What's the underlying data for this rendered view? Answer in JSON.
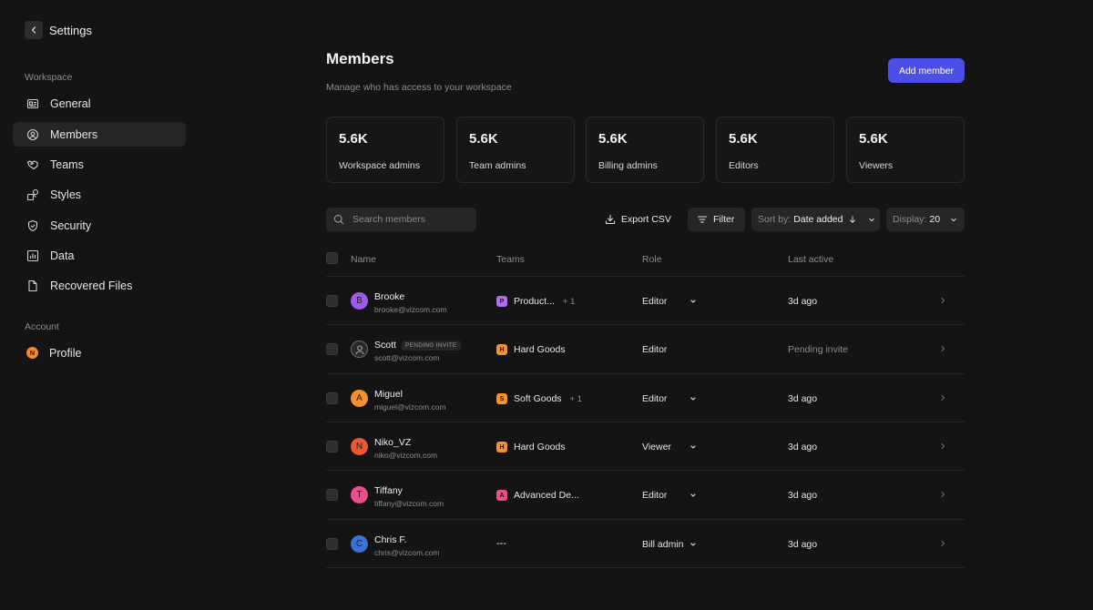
{
  "sidebar": {
    "title": "Settings",
    "workspace_label": "Workspace",
    "items": [
      {
        "label": "General"
      },
      {
        "label": "Members"
      },
      {
        "label": "Teams"
      },
      {
        "label": "Styles"
      },
      {
        "label": "Security"
      },
      {
        "label": "Data"
      },
      {
        "label": "Recovered Files"
      }
    ],
    "account_label": "Account",
    "profile": {
      "label": "Profile",
      "initial": "N",
      "color": "#f08a2a"
    }
  },
  "header": {
    "title": "Members",
    "subtitle": "Manage who has access to your workspace",
    "add_button": "Add member"
  },
  "stats": [
    {
      "value": "5.6K",
      "label": "Workspace admins"
    },
    {
      "value": "5.6K",
      "label": "Team admins"
    },
    {
      "value": "5.6K",
      "label": "Billing admins"
    },
    {
      "value": "5.6K",
      "label": "Editors"
    },
    {
      "value": "5.6K",
      "label": "Viewers"
    }
  ],
  "toolbar": {
    "search_placeholder": "Search members",
    "export_label": "Export CSV",
    "filter_label": "Filter",
    "sort_prefix": "Sort by:",
    "sort_value": "Date added",
    "display_prefix": "Display:",
    "display_value": "20"
  },
  "table": {
    "headers": {
      "name": "Name",
      "teams": "Teams",
      "role": "Role",
      "last_active": "Last active"
    },
    "rows": [
      {
        "name": "Brooke",
        "email": "brooke@vizcom.com",
        "initial": "B",
        "avatar_color": "#a259f0",
        "team": "Product...",
        "team_initial": "P",
        "team_color": "#b06cf2",
        "team_extra": "+ 1",
        "role": "Editor",
        "role_dropdown": true,
        "last_active": "3d ago"
      },
      {
        "name": "Scott",
        "badge": "PENDING INVITE",
        "email": "scott@vizcom.com",
        "initial": "",
        "avatar_color": "#2a2a2a",
        "team": "Hard Goods",
        "team_initial": "H",
        "team_color": "#f5902f",
        "team_extra": "",
        "role": "Editor",
        "role_dropdown": false,
        "last_active": "Pending invite"
      },
      {
        "name": "Miguel",
        "email": "miguel@vizcom.com",
        "initial": "A",
        "avatar_color": "#f5902f",
        "team": "Soft Goods",
        "team_initial": "S",
        "team_color": "#f5902f",
        "team_extra": "+ 1",
        "role": "Editor",
        "role_dropdown": true,
        "last_active": "3d ago"
      },
      {
        "name": "Niko_VZ",
        "email": "niko@vizcom.com",
        "initial": "N",
        "avatar_color": "#f0562f",
        "team": "Hard Goods",
        "team_initial": "H",
        "team_color": "#f5902f",
        "team_extra": "",
        "role": "Viewer",
        "role_dropdown": true,
        "last_active": "3d ago"
      },
      {
        "name": "Tiffany",
        "email": "tiffany@vizcom.com",
        "initial": "T",
        "avatar_color": "#ef4d8c",
        "team": "Advanced De...",
        "team_initial": "A",
        "team_color": "#ef4d8c",
        "team_extra": "",
        "role": "Editor",
        "role_dropdown": true,
        "last_active": "3d ago"
      },
      {
        "name": "Chris F.",
        "email": "chris@vizcom.com",
        "initial": "C",
        "avatar_color": "#3a72d8",
        "team": "---",
        "team_initial": "",
        "team_color": "",
        "team_extra": "",
        "role": "Bill admin",
        "role_dropdown": true,
        "last_active": "3d ago"
      }
    ]
  }
}
